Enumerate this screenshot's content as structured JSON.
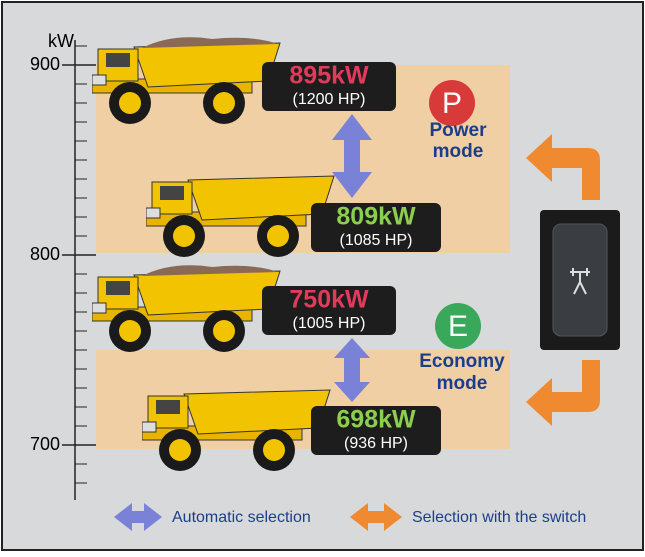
{
  "axis": {
    "unit": "kW",
    "ticks": [
      900,
      800,
      700
    ]
  },
  "outputs": [
    {
      "kw": "895kW",
      "hp": "(1200 HP)"
    },
    {
      "kw": "809kW",
      "hp": "(1085 HP)"
    },
    {
      "kw": "750kW",
      "hp": "(1005 HP)"
    },
    {
      "kw": "698kW",
      "hp": "(936 HP)"
    }
  ],
  "modes": [
    {
      "badge": "P",
      "label_lines": [
        "Power",
        "mode"
      ]
    },
    {
      "badge": "E",
      "label_lines": [
        "Economy",
        "mode"
      ]
    }
  ],
  "legend": [
    "Automatic selection",
    "Selection with the switch"
  ]
}
